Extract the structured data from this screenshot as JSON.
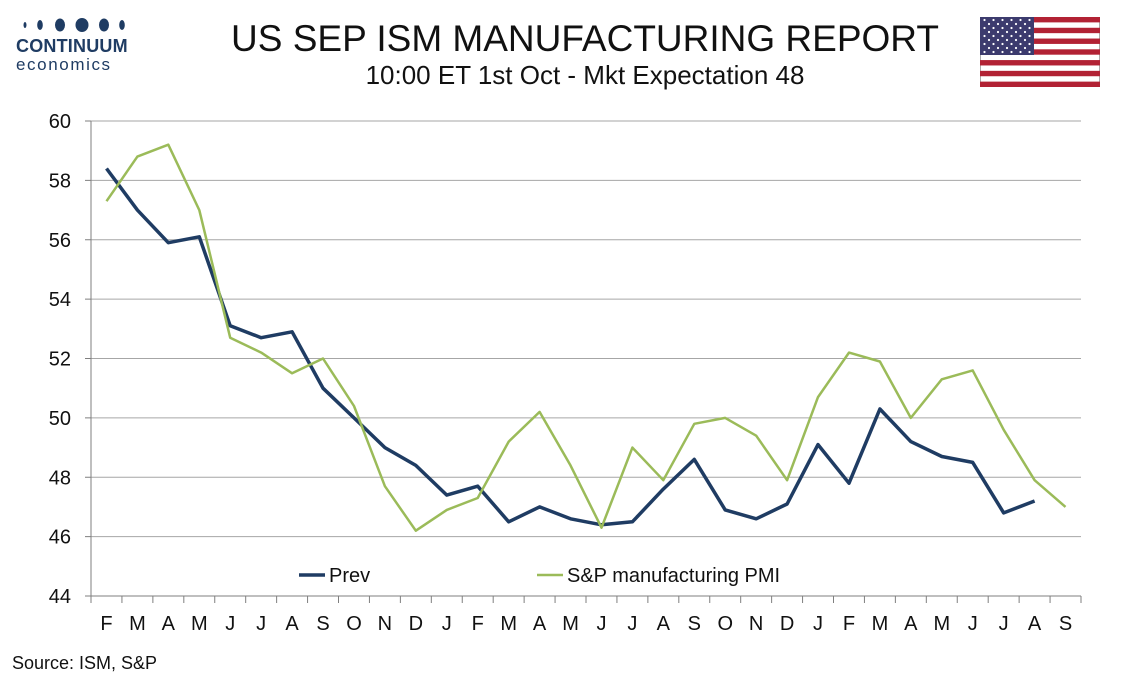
{
  "header": {
    "logo_name": "CONTINUUM",
    "logo_sub": "economics",
    "title": "US SEP ISM MANUFACTURING REPORT",
    "subtitle": "10:00 ET 1st Oct - Mkt Expectation 48",
    "flag_icon": "us-flag-icon"
  },
  "colors": {
    "brand": "#1f3c63",
    "prev": "#1f3c63",
    "pmi": "#9bbb59",
    "grid": "#a6a6a6",
    "flag_red": "#b22234",
    "flag_blue": "#3c3b6e"
  },
  "chart_data": {
    "type": "line",
    "categories": [
      "F",
      "M",
      "A",
      "M",
      "J",
      "J",
      "A",
      "S",
      "O",
      "N",
      "D",
      "J",
      "F",
      "M",
      "A",
      "M",
      "J",
      "J",
      "A",
      "S",
      "O",
      "N",
      "D",
      "J",
      "F",
      "M",
      "A",
      "M",
      "J",
      "J",
      "A",
      "S"
    ],
    "yticks": [
      "60",
      "58",
      "56",
      "54",
      "52",
      "50",
      "48",
      "46",
      "44"
    ],
    "ylim": [
      44,
      60
    ],
    "grid": true,
    "legend_position": "bottom-inside",
    "series": [
      {
        "name": "Prev",
        "color": "#1f3c63",
        "values": [
          58.4,
          57.0,
          55.9,
          56.1,
          53.1,
          52.7,
          52.9,
          51.0,
          50.0,
          49.0,
          48.4,
          47.4,
          47.7,
          46.5,
          47.0,
          46.6,
          46.4,
          46.5,
          47.6,
          48.6,
          46.9,
          46.6,
          47.1,
          49.1,
          47.8,
          50.3,
          49.2,
          48.7,
          48.5,
          46.8,
          47.2,
          null
        ]
      },
      {
        "name": "S&P manufacturing PMI",
        "color": "#9bbb59",
        "values": [
          57.3,
          58.8,
          59.2,
          57.0,
          52.7,
          52.2,
          51.5,
          52.0,
          50.4,
          47.7,
          46.2,
          46.9,
          47.3,
          49.2,
          50.2,
          48.4,
          46.3,
          49.0,
          47.9,
          49.8,
          50.0,
          49.4,
          47.9,
          50.7,
          52.2,
          51.9,
          50.0,
          51.3,
          51.6,
          49.6,
          47.9,
          47.0
        ]
      }
    ],
    "source": "Source: ISM, S&P"
  }
}
